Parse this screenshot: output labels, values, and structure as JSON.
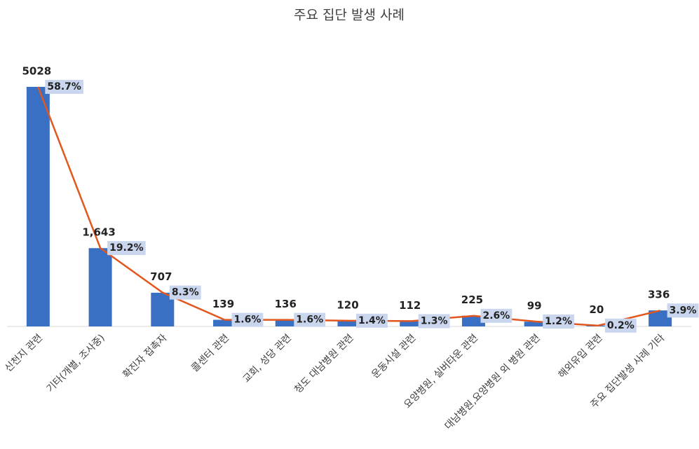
{
  "chart_data": {
    "type": "bar-line",
    "title": "주요 집단 발생 사례",
    "categories": [
      "신천지 관련",
      "기타(개별, 조사중)",
      "확진자 접촉자",
      "콜센터 관련",
      "교회, 성당 관련",
      "청도 대남병원 관련",
      "운동시설 관련",
      "요양병원, 실버타운 관련",
      "대남병원,요양병원 외 병원 관련",
      "해외유입 관련",
      "주요 집단발생 사례 기타"
    ],
    "series": [
      {
        "type": "bar",
        "color": "#3a70c4",
        "values": [
          5028,
          1643,
          707,
          139,
          136,
          120,
          112,
          225,
          99,
          20,
          336
        ],
        "value_labels": [
          "5028",
          "1,643",
          "707",
          "139",
          "136",
          "120",
          "112",
          "225",
          "99",
          "20",
          "336"
        ]
      },
      {
        "type": "line",
        "color": "#e2571e",
        "values": [
          58.7,
          19.2,
          8.3,
          1.6,
          1.6,
          1.4,
          1.3,
          2.6,
          1.2,
          0.2,
          3.9
        ],
        "value_labels": [
          "58.7%",
          "19.2%",
          "8.3%",
          "1.6%",
          "1.6%",
          "1.4%",
          "1.3%",
          "2.6%",
          "1.2%",
          "0.2%",
          "3.9%"
        ]
      }
    ]
  }
}
